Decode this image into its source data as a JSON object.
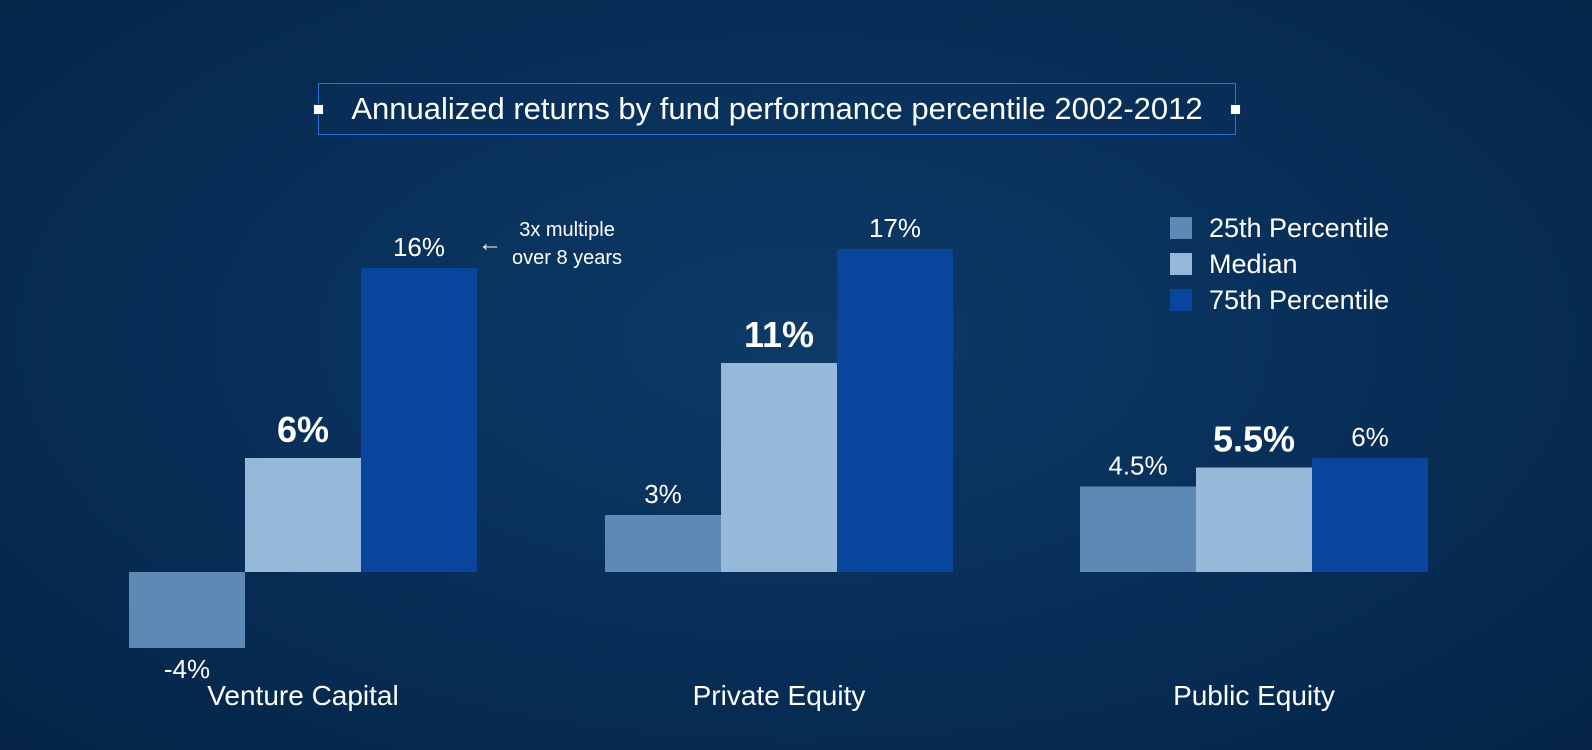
{
  "title": "Annualized returns by fund performance percentile 2002-2012",
  "annotation": {
    "lines": [
      "3x multiple",
      "over 8 years"
    ]
  },
  "chart_data": {
    "type": "bar",
    "categories": [
      "Venture Capital",
      "Private Equity",
      "Public Equity"
    ],
    "series": [
      {
        "name": "25th Percentile",
        "color": "#5f89b5",
        "values": [
          -4,
          3,
          4.5
        ],
        "labels": [
          "-4%",
          "3%",
          "4.5%"
        ]
      },
      {
        "name": "Median",
        "color": "#96b8d9",
        "values": [
          6,
          11,
          5.5
        ],
        "labels": [
          "6%",
          "11%",
          "5.5%"
        ]
      },
      {
        "name": "75th Percentile",
        "color": "#0a459d",
        "values": [
          16,
          17,
          6
        ],
        "labels": [
          "16%",
          "17%",
          "6%"
        ]
      }
    ],
    "emphasized_series": "Median",
    "ylim": [
      -4,
      17
    ],
    "grid": false,
    "legend_position": "top-right"
  }
}
